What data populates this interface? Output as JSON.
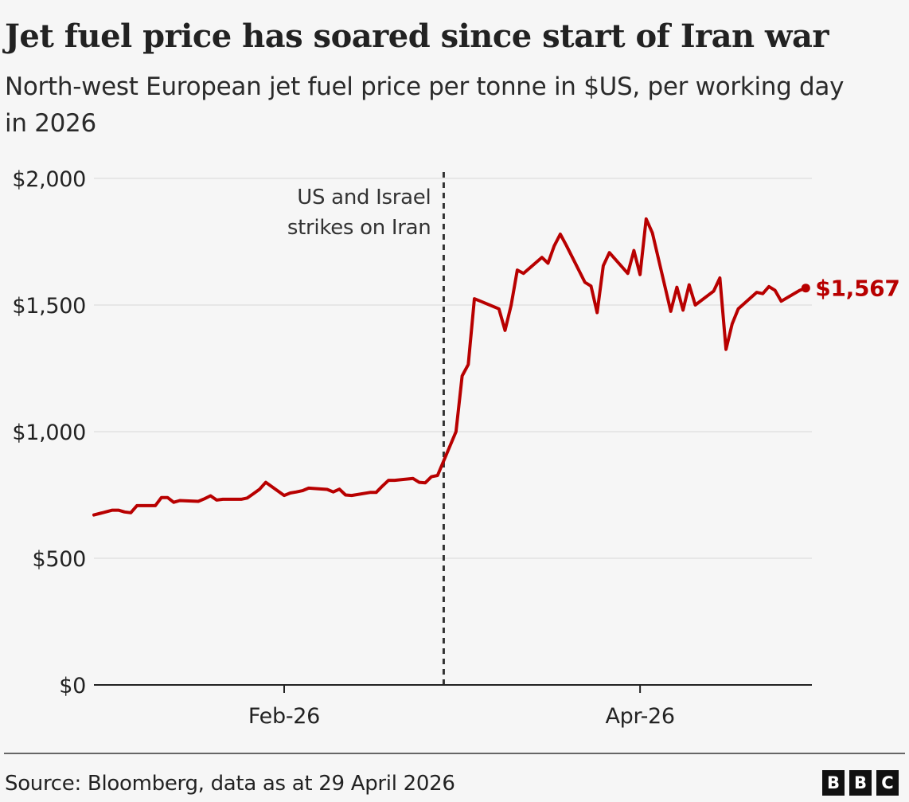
{
  "title": "Jet fuel price has soared since start of Iran war",
  "subtitle": "North-west European jet fuel price per tonne in $US, per working day in 2026",
  "source": "Source: Bloomberg, data as at 29 April 2026",
  "logo": [
    "B",
    "B",
    "C"
  ],
  "colors": {
    "line": "#b80000",
    "grid": "#e2e2e2",
    "axis": "#222222",
    "annotation_line": "#333333"
  },
  "chart_data": {
    "type": "line",
    "y_ticks": [
      {
        "value": 0,
        "label": "$0"
      },
      {
        "value": 500,
        "label": "$500"
      },
      {
        "value": 1000,
        "label": "$1,000"
      },
      {
        "value": 1500,
        "label": "$1,500"
      },
      {
        "value": 2000,
        "label": "$2,000"
      }
    ],
    "ylim": [
      0,
      2000
    ],
    "x_ticks": [
      {
        "date": "2026-02-02",
        "label": "Feb-26"
      },
      {
        "date": "2026-04-01",
        "label": "Apr-26"
      }
    ],
    "xlim": [
      "2026-01-02",
      "2026-04-29"
    ],
    "grid": "horizontal",
    "annotation": {
      "date": "2026-02-28",
      "lines": [
        "US and Israel",
        "strikes on Iran"
      ]
    },
    "end_label": "$1,567",
    "series": [
      {
        "values": [
          [
            "2026-01-02",
            671
          ],
          [
            "2026-01-05",
            690
          ],
          [
            "2026-01-06",
            690
          ],
          [
            "2026-01-07",
            683
          ],
          [
            "2026-01-08",
            680
          ],
          [
            "2026-01-09",
            708
          ],
          [
            "2026-01-12",
            708
          ],
          [
            "2026-01-13",
            740
          ],
          [
            "2026-01-14",
            740
          ],
          [
            "2026-01-15",
            721
          ],
          [
            "2026-01-16",
            728
          ],
          [
            "2026-01-19",
            725
          ],
          [
            "2026-01-20",
            735
          ],
          [
            "2026-01-21",
            747
          ],
          [
            "2026-01-22",
            730
          ],
          [
            "2026-01-23",
            733
          ],
          [
            "2026-01-26",
            733
          ],
          [
            "2026-01-27",
            738
          ],
          [
            "2026-01-28",
            755
          ],
          [
            "2026-01-29",
            773
          ],
          [
            "2026-01-30",
            800
          ],
          [
            "2026-02-02",
            748
          ],
          [
            "2026-02-03",
            758
          ],
          [
            "2026-02-04",
            762
          ],
          [
            "2026-02-05",
            767
          ],
          [
            "2026-02-06",
            777
          ],
          [
            "2026-02-09",
            772
          ],
          [
            "2026-02-10",
            762
          ],
          [
            "2026-02-11",
            773
          ],
          [
            "2026-02-12",
            750
          ],
          [
            "2026-02-13",
            748
          ],
          [
            "2026-02-16",
            760
          ],
          [
            "2026-02-17",
            760
          ],
          [
            "2026-02-18",
            785
          ],
          [
            "2026-02-19",
            808
          ],
          [
            "2026-02-20",
            808
          ],
          [
            "2026-02-23",
            815
          ],
          [
            "2026-02-24",
            800
          ],
          [
            "2026-02-25",
            798
          ],
          [
            "2026-02-26",
            822
          ],
          [
            "2026-02-27",
            827
          ],
          [
            "2026-03-02",
            1000
          ],
          [
            "2026-03-03",
            1220
          ],
          [
            "2026-03-04",
            1265
          ],
          [
            "2026-03-05",
            1525
          ],
          [
            "2026-03-06",
            1515
          ],
          [
            "2026-03-09",
            1485
          ],
          [
            "2026-03-10",
            1400
          ],
          [
            "2026-03-11",
            1500
          ],
          [
            "2026-03-12",
            1638
          ],
          [
            "2026-03-13",
            1625
          ],
          [
            "2026-03-16",
            1688
          ],
          [
            "2026-03-17",
            1665
          ],
          [
            "2026-03-18",
            1733
          ],
          [
            "2026-03-19",
            1780
          ],
          [
            "2026-03-20",
            1735
          ],
          [
            "2026-03-23",
            1590
          ],
          [
            "2026-03-24",
            1575
          ],
          [
            "2026-03-25",
            1470
          ],
          [
            "2026-03-26",
            1655
          ],
          [
            "2026-03-27",
            1707
          ],
          [
            "2026-03-30",
            1625
          ],
          [
            "2026-03-31",
            1715
          ],
          [
            "2026-04-01",
            1620
          ],
          [
            "2026-04-02",
            1840
          ],
          [
            "2026-04-03",
            1785
          ],
          [
            "2026-04-06",
            1475
          ],
          [
            "2026-04-07",
            1570
          ],
          [
            "2026-04-08",
            1480
          ],
          [
            "2026-04-09",
            1580
          ],
          [
            "2026-04-10",
            1500
          ],
          [
            "2026-04-13",
            1555
          ],
          [
            "2026-04-14",
            1607
          ],
          [
            "2026-04-15",
            1325
          ],
          [
            "2026-04-16",
            1425
          ],
          [
            "2026-04-17",
            1485
          ],
          [
            "2026-04-20",
            1550
          ],
          [
            "2026-04-21",
            1545
          ],
          [
            "2026-04-22",
            1573
          ],
          [
            "2026-04-23",
            1558
          ],
          [
            "2026-04-24",
            1515
          ],
          [
            "2026-04-27",
            1558
          ],
          [
            "2026-04-28",
            1567
          ]
        ]
      }
    ]
  }
}
